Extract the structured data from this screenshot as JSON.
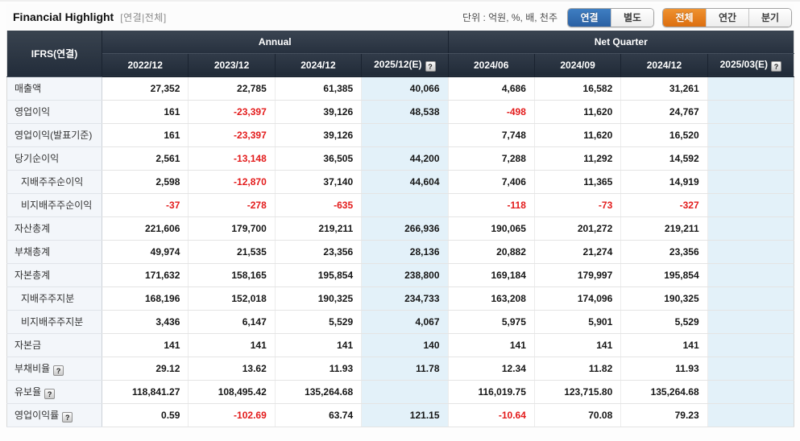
{
  "page": {
    "title": "Financial Highlight",
    "title_scope": "[연결|전체]",
    "unit_label": "단위 : 억원, %, 배, 천주"
  },
  "colors": {
    "accent_blue": "#2f6db5",
    "accent_orange": "#e2771f",
    "negative_red": "#e31b1b",
    "estimate_bg": "#e3f1f9",
    "header_bg": "#2b3543"
  },
  "toggles": [
    {
      "name": "consolidation-toggle",
      "buttons": [
        {
          "label": "연결",
          "active": true,
          "style": "blue"
        },
        {
          "label": "별도",
          "active": false,
          "style": ""
        }
      ]
    },
    {
      "name": "period-toggle",
      "buttons": [
        {
          "label": "전체",
          "active": true,
          "style": "orange"
        },
        {
          "label": "연간",
          "active": false,
          "style": ""
        },
        {
          "label": "분기",
          "active": false,
          "style": ""
        }
      ]
    }
  ],
  "table": {
    "corner_label": "IFRS(연결)",
    "groups": [
      {
        "label": "Annual",
        "span": 4
      },
      {
        "label": "Net Quarter",
        "span": 4
      }
    ],
    "columns": [
      {
        "label": "2022/12",
        "estimate": false,
        "help": false
      },
      {
        "label": "2023/12",
        "estimate": false,
        "help": false
      },
      {
        "label": "2024/12",
        "estimate": false,
        "help": false
      },
      {
        "label": "2025/12(E)",
        "estimate": true,
        "help": true
      },
      {
        "label": "2024/06",
        "estimate": false,
        "help": false
      },
      {
        "label": "2024/09",
        "estimate": false,
        "help": false
      },
      {
        "label": "2024/12",
        "estimate": false,
        "help": false
      },
      {
        "label": "2025/03(E)",
        "estimate": true,
        "help": true
      }
    ],
    "rows": [
      {
        "label": "매출액",
        "indent": false,
        "help": false,
        "values": [
          "27,352",
          "22,785",
          "61,385",
          "40,066",
          "4,686",
          "16,582",
          "31,261",
          ""
        ]
      },
      {
        "label": "영업이익",
        "indent": false,
        "help": false,
        "values": [
          "161",
          "-23,397",
          "39,126",
          "48,538",
          "-498",
          "11,620",
          "24,767",
          ""
        ]
      },
      {
        "label": "영업이익(발표기준)",
        "indent": false,
        "help": false,
        "values": [
          "161",
          "-23,397",
          "39,126",
          "",
          "7,748",
          "11,620",
          "16,520",
          ""
        ]
      },
      {
        "label": "당기순이익",
        "indent": false,
        "help": false,
        "values": [
          "2,561",
          "-13,148",
          "36,505",
          "44,200",
          "7,288",
          "11,292",
          "14,592",
          ""
        ]
      },
      {
        "label": "지배주주순이익",
        "indent": true,
        "help": false,
        "values": [
          "2,598",
          "-12,870",
          "37,140",
          "44,604",
          "7,406",
          "11,365",
          "14,919",
          ""
        ]
      },
      {
        "label": "비지배주주순이익",
        "indent": true,
        "help": false,
        "values": [
          "-37",
          "-278",
          "-635",
          "",
          "-118",
          "-73",
          "-327",
          ""
        ]
      },
      {
        "label": "자산총계",
        "indent": false,
        "help": false,
        "values": [
          "221,606",
          "179,700",
          "219,211",
          "266,936",
          "190,065",
          "201,272",
          "219,211",
          ""
        ]
      },
      {
        "label": "부채총계",
        "indent": false,
        "help": false,
        "values": [
          "49,974",
          "21,535",
          "23,356",
          "28,136",
          "20,882",
          "21,274",
          "23,356",
          ""
        ]
      },
      {
        "label": "자본총계",
        "indent": false,
        "help": false,
        "values": [
          "171,632",
          "158,165",
          "195,854",
          "238,800",
          "169,184",
          "179,997",
          "195,854",
          ""
        ]
      },
      {
        "label": "지배주주지분",
        "indent": true,
        "help": false,
        "values": [
          "168,196",
          "152,018",
          "190,325",
          "234,733",
          "163,208",
          "174,096",
          "190,325",
          ""
        ]
      },
      {
        "label": "비지배주주지분",
        "indent": true,
        "help": false,
        "values": [
          "3,436",
          "6,147",
          "5,529",
          "4,067",
          "5,975",
          "5,901",
          "5,529",
          ""
        ]
      },
      {
        "label": "자본금",
        "indent": false,
        "help": false,
        "values": [
          "141",
          "141",
          "141",
          "140",
          "141",
          "141",
          "141",
          ""
        ]
      },
      {
        "label": "부채비율",
        "indent": false,
        "help": true,
        "values": [
          "29.12",
          "13.62",
          "11.93",
          "11.78",
          "12.34",
          "11.82",
          "11.93",
          ""
        ]
      },
      {
        "label": "유보율",
        "indent": false,
        "help": true,
        "values": [
          "118,841.27",
          "108,495.42",
          "135,264.68",
          "",
          "116,019.75",
          "123,715.80",
          "135,264.68",
          ""
        ]
      },
      {
        "label": "영업이익률",
        "indent": false,
        "help": true,
        "values": [
          "0.59",
          "-102.69",
          "63.74",
          "121.15",
          "-10.64",
          "70.08",
          "79.23",
          ""
        ]
      }
    ]
  }
}
